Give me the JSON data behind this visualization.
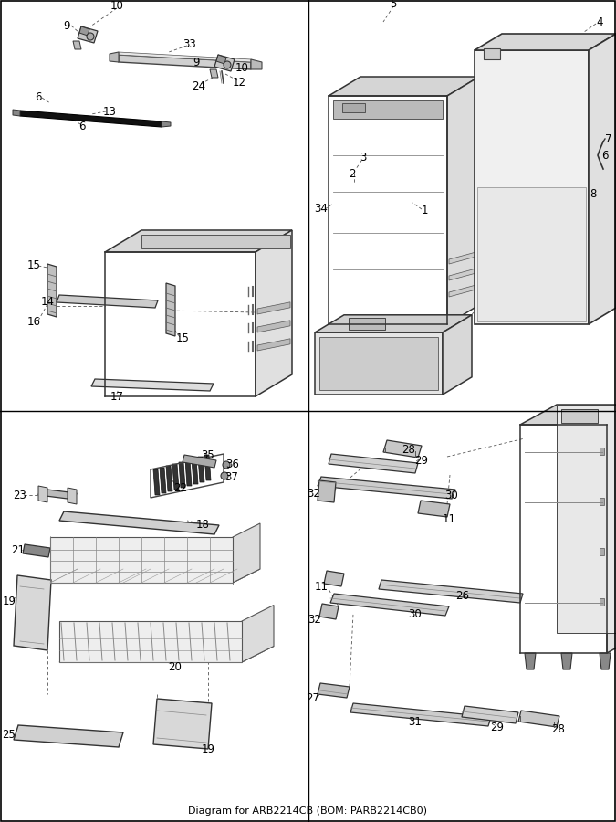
{
  "title": "Diagram for ARB2214CB (BOM: PARB2214CB0)",
  "bg_color": "#ffffff",
  "divider_color": "#555555",
  "label_color": "#000000",
  "fs": 8.5,
  "fs_title": 8,
  "parts_color": "#e8e8e8",
  "edge_color": "#333333",
  "dark_color": "#222222",
  "mid_color": "#bbbbbb",
  "light_color": "#f2f2f2"
}
